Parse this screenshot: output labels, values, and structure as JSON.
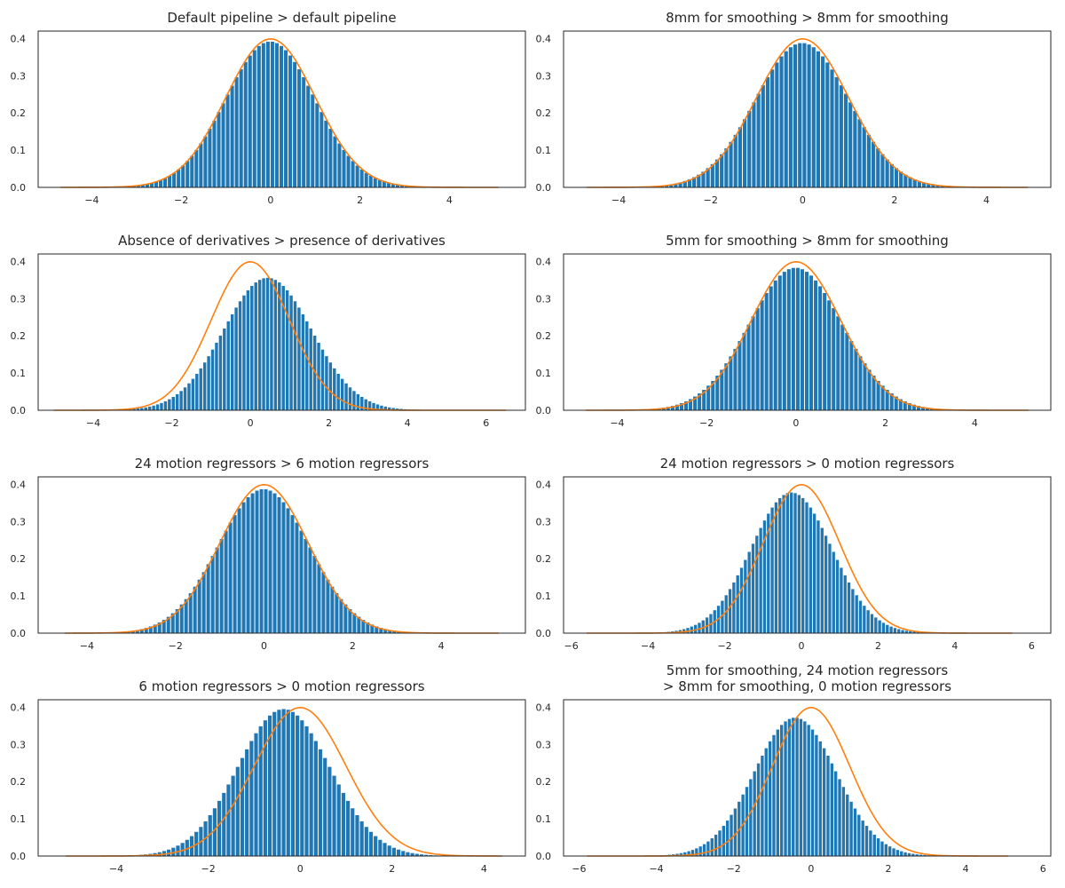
{
  "figure": {
    "background": "#ffffff",
    "bar_color": "#1f77b4",
    "curve_color": "#ff7f0e",
    "axis_color": "#262626"
  },
  "chart_data": [
    {
      "type": "bar",
      "title_lines": [
        "Default pipeline > default pipeline"
      ],
      "xlim": [
        -5.2,
        5.7
      ],
      "ylim": [
        0,
        0.42
      ],
      "xticks": [
        -4,
        -2,
        0,
        2,
        4
      ],
      "yticks": [
        0.0,
        0.1,
        0.2,
        0.3,
        0.4
      ],
      "histogram": {
        "range": [
          -4.7,
          5.1
        ],
        "bins": 98,
        "mean": 0.0,
        "sd": 1.0,
        "peak": 0.392
      },
      "reference_curve": {
        "label": "standard normal pdf",
        "range": [
          -4.7,
          5.1
        ],
        "mean": 0,
        "sd": 1
      }
    },
    {
      "type": "bar",
      "title_lines": [
        "8mm for smoothing > 8mm for smoothing"
      ],
      "xlim": [
        -5.2,
        5.4
      ],
      "ylim": [
        0,
        0.42
      ],
      "xticks": [
        -4,
        -2,
        0,
        2,
        4
      ],
      "yticks": [
        0.0,
        0.1,
        0.2,
        0.3,
        0.4
      ],
      "histogram": {
        "range": [
          -4.7,
          4.9
        ],
        "bins": 96,
        "mean": 0.0,
        "sd": 1.02,
        "peak": 0.388
      },
      "reference_curve": {
        "label": "standard normal pdf",
        "range": [
          -4.7,
          4.9
        ],
        "mean": 0,
        "sd": 1
      }
    },
    {
      "type": "bar",
      "title_lines": [
        "Absence of derivatives > presence of derivatives"
      ],
      "xlim": [
        -5.4,
        7.0
      ],
      "ylim": [
        0,
        0.42
      ],
      "xticks": [
        -4,
        -2,
        0,
        2,
        4,
        6
      ],
      "yticks": [
        0.0,
        0.1,
        0.2,
        0.3,
        0.4
      ],
      "histogram": {
        "range": [
          -5.0,
          6.5
        ],
        "bins": 115,
        "mean": 0.45,
        "sd": 1.12,
        "peak": 0.356
      },
      "reference_curve": {
        "label": "standard normal pdf",
        "range": [
          -5.0,
          6.5
        ],
        "mean": 0,
        "sd": 1
      }
    },
    {
      "type": "bar",
      "title_lines": [
        "5mm for smoothing > 8mm for smoothing"
      ],
      "xlim": [
        -5.2,
        5.7
      ],
      "ylim": [
        0,
        0.42
      ],
      "xticks": [
        -4,
        -2,
        0,
        2,
        4
      ],
      "yticks": [
        0.0,
        0.1,
        0.2,
        0.3,
        0.4
      ],
      "histogram": {
        "range": [
          -4.7,
          5.2
        ],
        "bins": 99,
        "mean": 0.0,
        "sd": 1.04,
        "peak": 0.383
      },
      "reference_curve": {
        "label": "standard normal pdf",
        "range": [
          -4.7,
          5.2
        ],
        "mean": 0,
        "sd": 1
      }
    },
    {
      "type": "bar",
      "title_lines": [
        "24 motion regressors > 6 motion regressors"
      ],
      "xlim": [
        -5.1,
        5.9
      ],
      "ylim": [
        0,
        0.42
      ],
      "xticks": [
        -4,
        -2,
        0,
        2,
        4
      ],
      "yticks": [
        0.0,
        0.1,
        0.2,
        0.3,
        0.4
      ],
      "histogram": {
        "range": [
          -4.5,
          5.3
        ],
        "bins": 98,
        "mean": 0.0,
        "sd": 1.03,
        "peak": 0.387
      },
      "reference_curve": {
        "label": "standard normal pdf",
        "range": [
          -4.5,
          5.3
        ],
        "mean": 0,
        "sd": 1
      }
    },
    {
      "type": "bar",
      "title_lines": [
        "24 motion regressors > 0 motion regressors"
      ],
      "xlim": [
        -6.2,
        6.5
      ],
      "ylim": [
        0,
        0.42
      ],
      "xticks": [
        -6,
        -4,
        -2,
        0,
        2,
        4,
        6
      ],
      "yticks": [
        0.0,
        0.1,
        0.2,
        0.3,
        0.4
      ],
      "histogram": {
        "range": [
          -5.6,
          5.5
        ],
        "bins": 111,
        "mean": -0.25,
        "sd": 1.05,
        "peak": 0.378
      },
      "reference_curve": {
        "label": "standard normal pdf",
        "range": [
          -5.6,
          5.5
        ],
        "mean": 0,
        "sd": 1
      }
    },
    {
      "type": "bar",
      "title_lines": [
        "6 motion regressors > 0 motion regressors"
      ],
      "xlim": [
        -5.7,
        4.9
      ],
      "ylim": [
        0,
        0.42
      ],
      "xticks": [
        -4,
        -2,
        0,
        2,
        4
      ],
      "yticks": [
        0.0,
        0.1,
        0.2,
        0.3,
        0.4
      ],
      "histogram": {
        "range": [
          -5.1,
          4.4
        ],
        "bins": 95,
        "mean": -0.35,
        "sd": 1.0,
        "peak": 0.395
      },
      "reference_curve": {
        "label": "standard normal pdf",
        "range": [
          -5.1,
          4.4
        ],
        "mean": 0,
        "sd": 1
      }
    },
    {
      "type": "bar",
      "title_lines": [
        "5mm for smoothing, 24 motion regressors",
        "> 8mm for smoothing, 0 motion regressors"
      ],
      "xlim": [
        -6.4,
        6.2
      ],
      "ylim": [
        0,
        0.42
      ],
      "xticks": [
        -6,
        -4,
        -2,
        0,
        2,
        4,
        6
      ],
      "yticks": [
        0.0,
        0.1,
        0.2,
        0.3,
        0.4
      ],
      "histogram": {
        "range": [
          -5.8,
          5.1
        ],
        "bins": 109,
        "mean": -0.4,
        "sd": 1.06,
        "peak": 0.372
      },
      "reference_curve": {
        "label": "standard normal pdf",
        "range": [
          -5.8,
          5.1
        ],
        "mean": 0,
        "sd": 1
      }
    }
  ]
}
